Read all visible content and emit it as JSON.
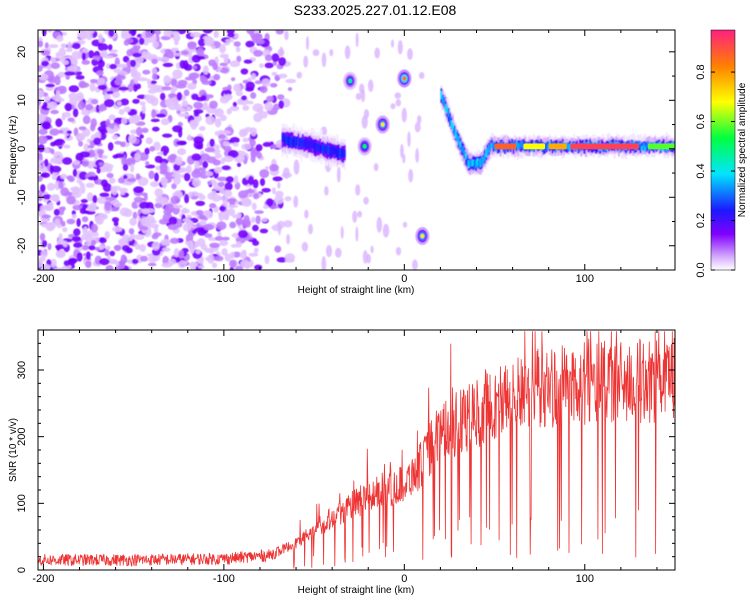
{
  "title": "S233.2025.227.01.12.E08",
  "chart_data": [
    {
      "type": "heatmap",
      "name": "spectrogram",
      "xlabel": "Height of straight line (km)",
      "ylabel": "Frequency (Hz)",
      "xlim": [
        -203,
        150
      ],
      "ylim": [
        -25,
        24.5
      ],
      "xticks": [
        -200,
        -100,
        0,
        100
      ],
      "yticks": [
        -20,
        -10,
        0,
        10,
        20
      ],
      "colorbar": {
        "label": "Normalized spectral amplitude",
        "range": [
          0,
          0.97
        ],
        "ticks": [
          0.0,
          0.2,
          0.4,
          0.6,
          0.8
        ],
        "tick_labels": [
          "0.0",
          "0.2",
          "0.4",
          "0.6",
          "0.8"
        ]
      },
      "features": [
        {
          "description": "noise region",
          "x_range": [
            -203,
            -68
          ],
          "y_range": [
            -25,
            24
          ],
          "amplitude": 0.05
        },
        {
          "description": "main tone segment",
          "x_range": [
            -68,
            -33
          ],
          "freq_path": [
            [
              -68,
              2
            ],
            [
              -55,
              1
            ],
            [
              -45,
              0
            ],
            [
              -35,
              -1
            ]
          ],
          "amplitude": 0.25
        },
        {
          "description": "burst",
          "x": -30,
          "freq": 14,
          "amplitude": 0.3
        },
        {
          "description": "burst",
          "x": -22,
          "freq": 0.5,
          "amplitude": 0.35
        },
        {
          "description": "burst",
          "x": -12,
          "freq": 5,
          "amplitude": 0.45
        },
        {
          "description": "burst",
          "x": 0,
          "freq": 14.5,
          "amplitude": 0.55
        },
        {
          "description": "burst",
          "x": 10,
          "freq": -18,
          "amplitude": 0.45
        },
        {
          "description": "chirp",
          "x_range": [
            20,
            48
          ],
          "freq_path": [
            [
              20,
              11
            ],
            [
              28,
              3
            ],
            [
              35,
              -3
            ],
            [
              42,
              -3
            ],
            [
              48,
              1
            ]
          ],
          "amplitude": 0.35
        },
        {
          "description": "steady tone",
          "x_range": [
            48,
            150
          ],
          "freq": 0.5,
          "amplitude": 0.85
        }
      ]
    },
    {
      "type": "line",
      "name": "snr",
      "xlabel": "Height of straight line (km)",
      "ylabel": "SNR (10 * v/v)",
      "xlim": [
        -203,
        150
      ],
      "ylim": [
        0,
        360
      ],
      "xticks": [
        -200,
        -100,
        0,
        100
      ],
      "yticks": [
        0,
        100,
        200,
        300
      ],
      "color": "#ee3333",
      "trend": [
        [
          -203,
          15
        ],
        [
          -150,
          15
        ],
        [
          -100,
          17
        ],
        [
          -75,
          22
        ],
        [
          -60,
          40
        ],
        [
          -40,
          80
        ],
        [
          -20,
          110
        ],
        [
          0,
          130
        ],
        [
          10,
          160
        ],
        [
          18,
          200
        ],
        [
          30,
          220
        ],
        [
          50,
          250
        ],
        [
          70,
          270
        ],
        [
          100,
          280
        ],
        [
          150,
          285
        ]
      ]
    }
  ]
}
